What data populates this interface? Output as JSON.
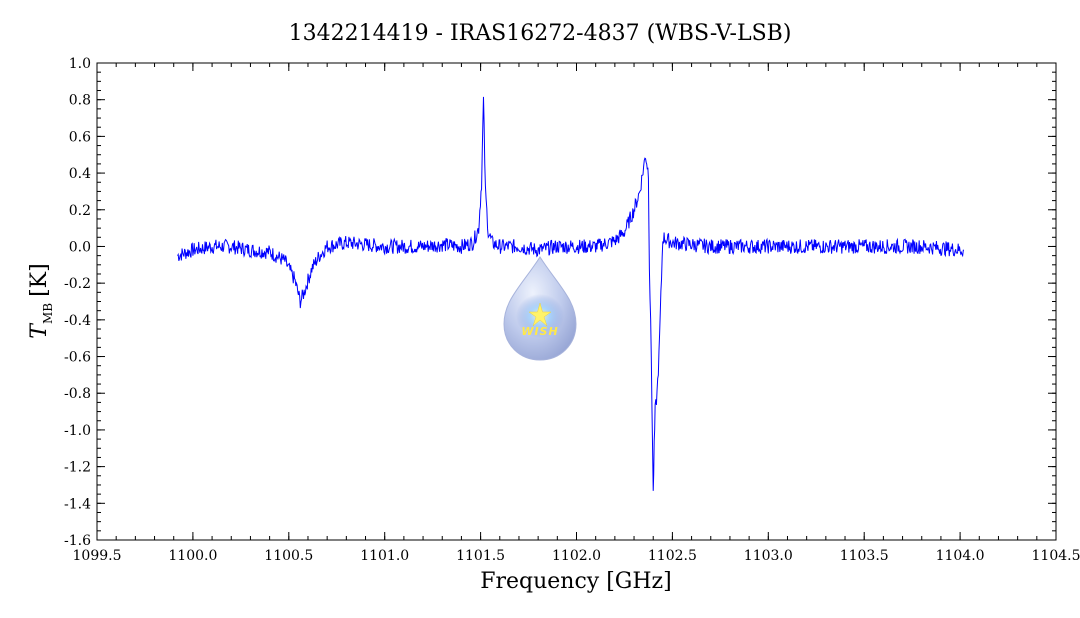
{
  "chart_data": {
    "type": "line",
    "title": "1342214419 - IRAS16272-4837 (WBS-V-LSB)",
    "xlabel": "Frequency [GHz]",
    "ylabel_main": "T",
    "ylabel_sub": "MB",
    "ylabel_unit": "[K]",
    "xlim": [
      1099.5,
      1104.5
    ],
    "ylim": [
      -1.6,
      1.0
    ],
    "xticks": [
      "1099.5",
      "1100.0",
      "1100.5",
      "1101.0",
      "1101.5",
      "1102.0",
      "1102.5",
      "1103.0",
      "1103.5",
      "1104.0",
      "1104.5"
    ],
    "yticks": [
      "1.0",
      "0.8",
      "0.6",
      "0.4",
      "0.2",
      "0.0",
      "-0.2",
      "-0.4",
      "-0.6",
      "-0.8",
      "-1.0",
      "-1.2",
      "-1.4",
      "-1.6"
    ],
    "grid": false,
    "series": [
      {
        "color": "#0000ff",
        "x": [
          1099.92,
          1100.0,
          1100.1,
          1100.2,
          1100.3,
          1100.4,
          1100.48,
          1100.53,
          1100.56,
          1100.58,
          1100.62,
          1100.66,
          1100.7,
          1100.8,
          1100.9,
          1101.0,
          1101.1,
          1101.2,
          1101.3,
          1101.4,
          1101.46,
          1101.49,
          1101.505,
          1101.515,
          1101.525,
          1101.54,
          1101.56,
          1101.6,
          1101.7,
          1101.8,
          1101.9,
          1102.0,
          1102.1,
          1102.2,
          1102.25,
          1102.3,
          1102.33,
          1102.36,
          1102.375,
          1102.38,
          1102.39,
          1102.4,
          1102.405,
          1102.41,
          1102.42,
          1102.43,
          1102.45,
          1102.5,
          1102.6,
          1102.7,
          1102.8,
          1102.9,
          1103.0,
          1103.2,
          1103.4,
          1103.6,
          1103.8,
          1104.02
        ],
        "y": [
          -0.05,
          -0.02,
          0.0,
          0.0,
          -0.02,
          -0.03,
          -0.08,
          -0.18,
          -0.3,
          -0.25,
          -0.12,
          -0.05,
          0.0,
          0.02,
          0.01,
          0.0,
          0.0,
          0.0,
          0.01,
          0.0,
          0.02,
          0.1,
          0.35,
          0.8,
          0.3,
          0.08,
          0.02,
          0.0,
          0.0,
          -0.02,
          0.0,
          0.0,
          0.0,
          0.03,
          0.08,
          0.2,
          0.3,
          0.5,
          0.4,
          -0.1,
          -0.6,
          -1.35,
          -1.1,
          -0.9,
          -0.8,
          -0.6,
          0.05,
          0.02,
          0.01,
          0.0,
          0.0,
          0.0,
          0.0,
          0.0,
          0.0,
          0.0,
          0.0,
          -0.02
        ]
      }
    ],
    "watermark": "WISH"
  }
}
